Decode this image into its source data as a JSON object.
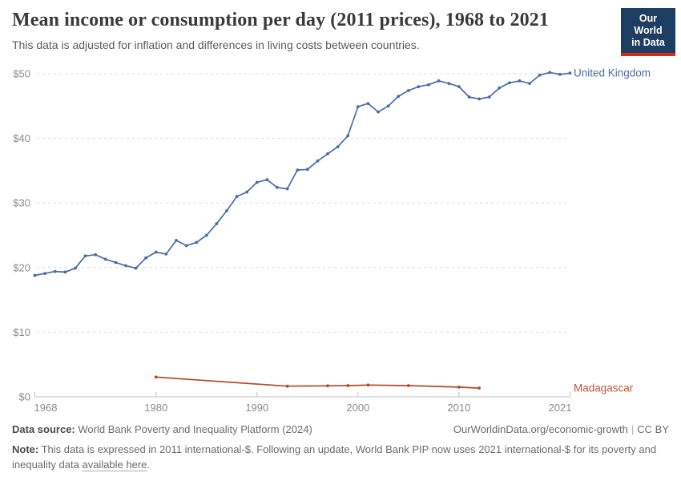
{
  "header": {
    "title": "Mean income or consumption per day (2011 prices), 1968 to 2021",
    "subtitle": "This data is adjusted for inflation and differences in living costs between countries.",
    "logo": {
      "line1": "Our World",
      "line2": "in Data",
      "bg_color": "#1d3d63",
      "bar_color": "#d22d19"
    }
  },
  "chart_data": {
    "type": "line",
    "title": "Mean income or consumption per day (2011 prices), 1968 to 2021",
    "subtitle": "This data is adjusted for inflation and differences in living costs between countries.",
    "xlabel": "",
    "ylabel": "",
    "xlim": [
      1968,
      2021
    ],
    "ylim": [
      0,
      50
    ],
    "grid": "horizontal-dashed",
    "legend_position": "right-end-labels",
    "y_tick_prefix": "$",
    "y_ticks": [
      0,
      10,
      20,
      30,
      40,
      50
    ],
    "x_ticks": [
      1968,
      1980,
      1990,
      2000,
      2010,
      2021
    ],
    "axis_color": "#c3c3c3",
    "grid_color": "#dcdcdc",
    "tick_label_color": "#8b8b8b",
    "series": [
      {
        "name": "United Kingdom",
        "color": "#4a6baa",
        "label_color": "#4a6baa",
        "x": [
          1968,
          1969,
          1970,
          1971,
          1972,
          1973,
          1974,
          1975,
          1976,
          1977,
          1978,
          1979,
          1980,
          1981,
          1982,
          1983,
          1984,
          1985,
          1986,
          1987,
          1988,
          1989,
          1990,
          1991,
          1992,
          1993,
          1994,
          1995,
          1996,
          1997,
          1998,
          1999,
          2000,
          2001,
          2002,
          2003,
          2004,
          2005,
          2006,
          2007,
          2008,
          2009,
          2010,
          2011,
          2012,
          2013,
          2014,
          2015,
          2016,
          2017,
          2018,
          2019,
          2020,
          2021
        ],
        "values": [
          18.8,
          19.1,
          19.4,
          19.3,
          19.9,
          21.8,
          22.0,
          21.3,
          20.8,
          20.3,
          19.9,
          21.5,
          22.4,
          22.1,
          24.2,
          23.4,
          23.9,
          25.0,
          26.8,
          28.8,
          31.0,
          31.7,
          33.2,
          33.6,
          32.4,
          32.2,
          35.1,
          35.2,
          36.5,
          37.6,
          38.7,
          40.4,
          44.9,
          45.4,
          44.1,
          45.0,
          46.5,
          47.4,
          48.0,
          48.3,
          48.9,
          48.5,
          48.0,
          46.4,
          46.1,
          46.4,
          47.8,
          48.6,
          48.9,
          48.5,
          49.8,
          50.2,
          49.9,
          50.1
        ]
      },
      {
        "name": "Madagascar",
        "color": "#b54925",
        "label_color": "#c05534",
        "x": [
          1980,
          1993,
          1997,
          1999,
          2001,
          2005,
          2010,
          2012
        ],
        "values": [
          3.05,
          1.65,
          1.7,
          1.74,
          1.83,
          1.74,
          1.5,
          1.35
        ]
      }
    ]
  },
  "footer": {
    "source_label": "Data source:",
    "source_value": "World Bank Poverty and Inequality Platform (2024)",
    "permalink": "OurWorldinData.org/economic-growth",
    "separator": "|",
    "license": "CC BY",
    "note_label": "Note:",
    "note_body": "This data is expressed in 2011 international-$. Following an update, World Bank PIP now uses 2021 international-$ for its poverty and inequality data",
    "note_link": "available here",
    "note_period": "."
  }
}
